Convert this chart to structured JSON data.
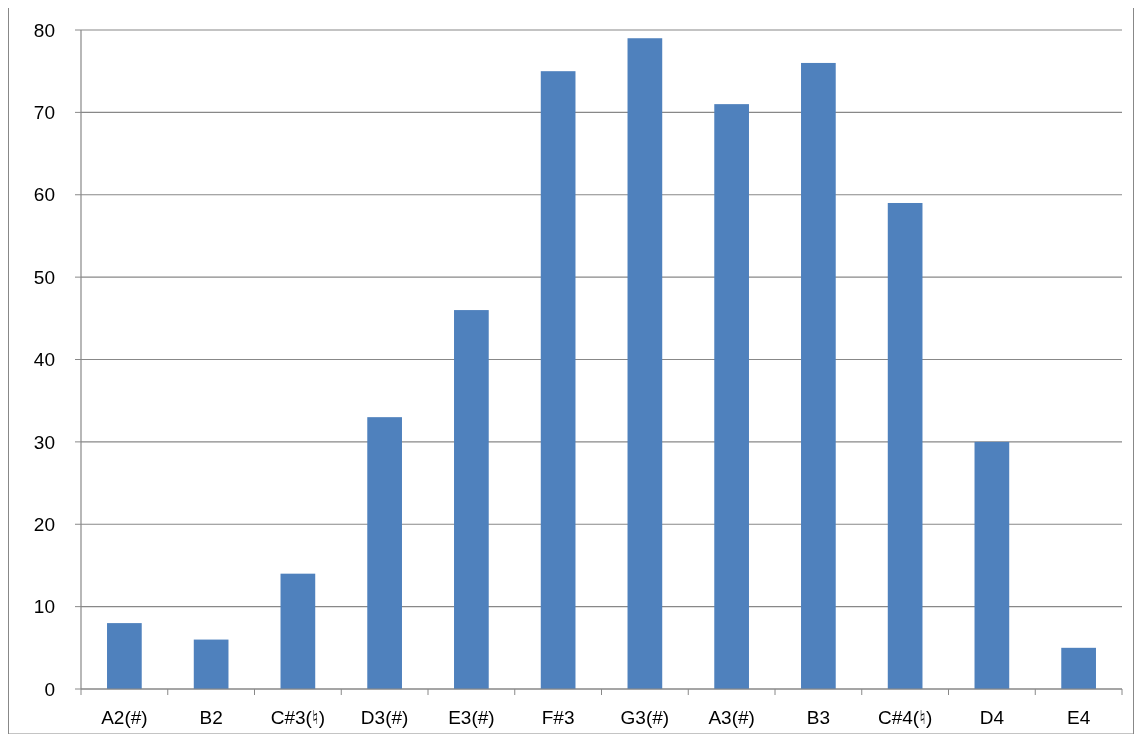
{
  "chart_data": {
    "type": "bar",
    "categories": [
      "A2(#)",
      "B2",
      "C#3(♮)",
      "D3(#)",
      "E3(#)",
      "F#3",
      "G3(#)",
      "A3(#)",
      "B3",
      "C#4(♮)",
      "D4",
      "E4"
    ],
    "values": [
      8,
      6,
      14,
      33,
      46,
      75,
      79,
      71,
      76,
      59,
      30,
      5
    ],
    "color": "#4f81bd",
    "ylim": [
      0,
      80
    ],
    "yticks": [
      0,
      10,
      20,
      30,
      40,
      50,
      60,
      70,
      80
    ],
    "grid": "y"
  }
}
